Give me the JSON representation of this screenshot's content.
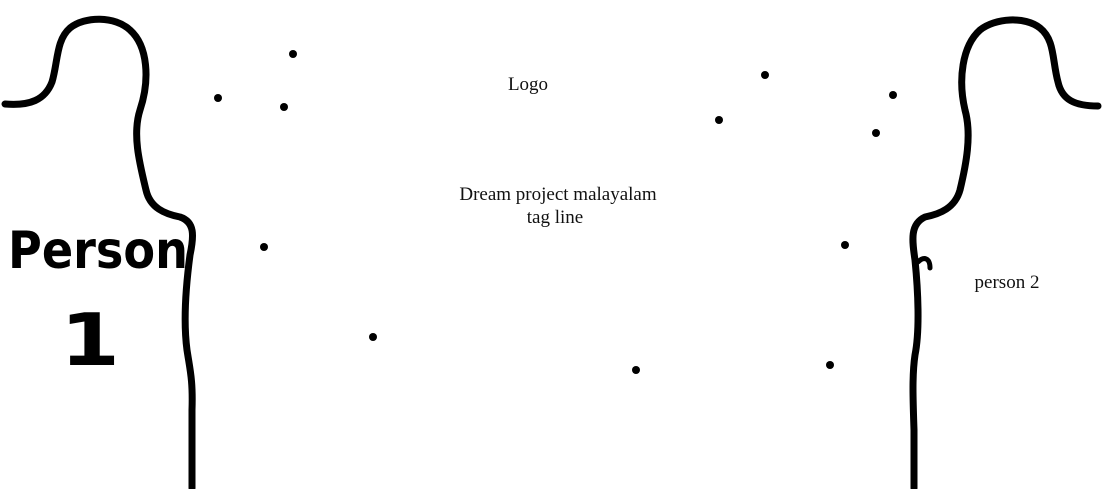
{
  "logo": "Logo",
  "tagline": [
    "Dream project malayalam",
    "tag line"
  ],
  "person1": [
    "Person",
    "1"
  ],
  "person2": "person 2"
}
